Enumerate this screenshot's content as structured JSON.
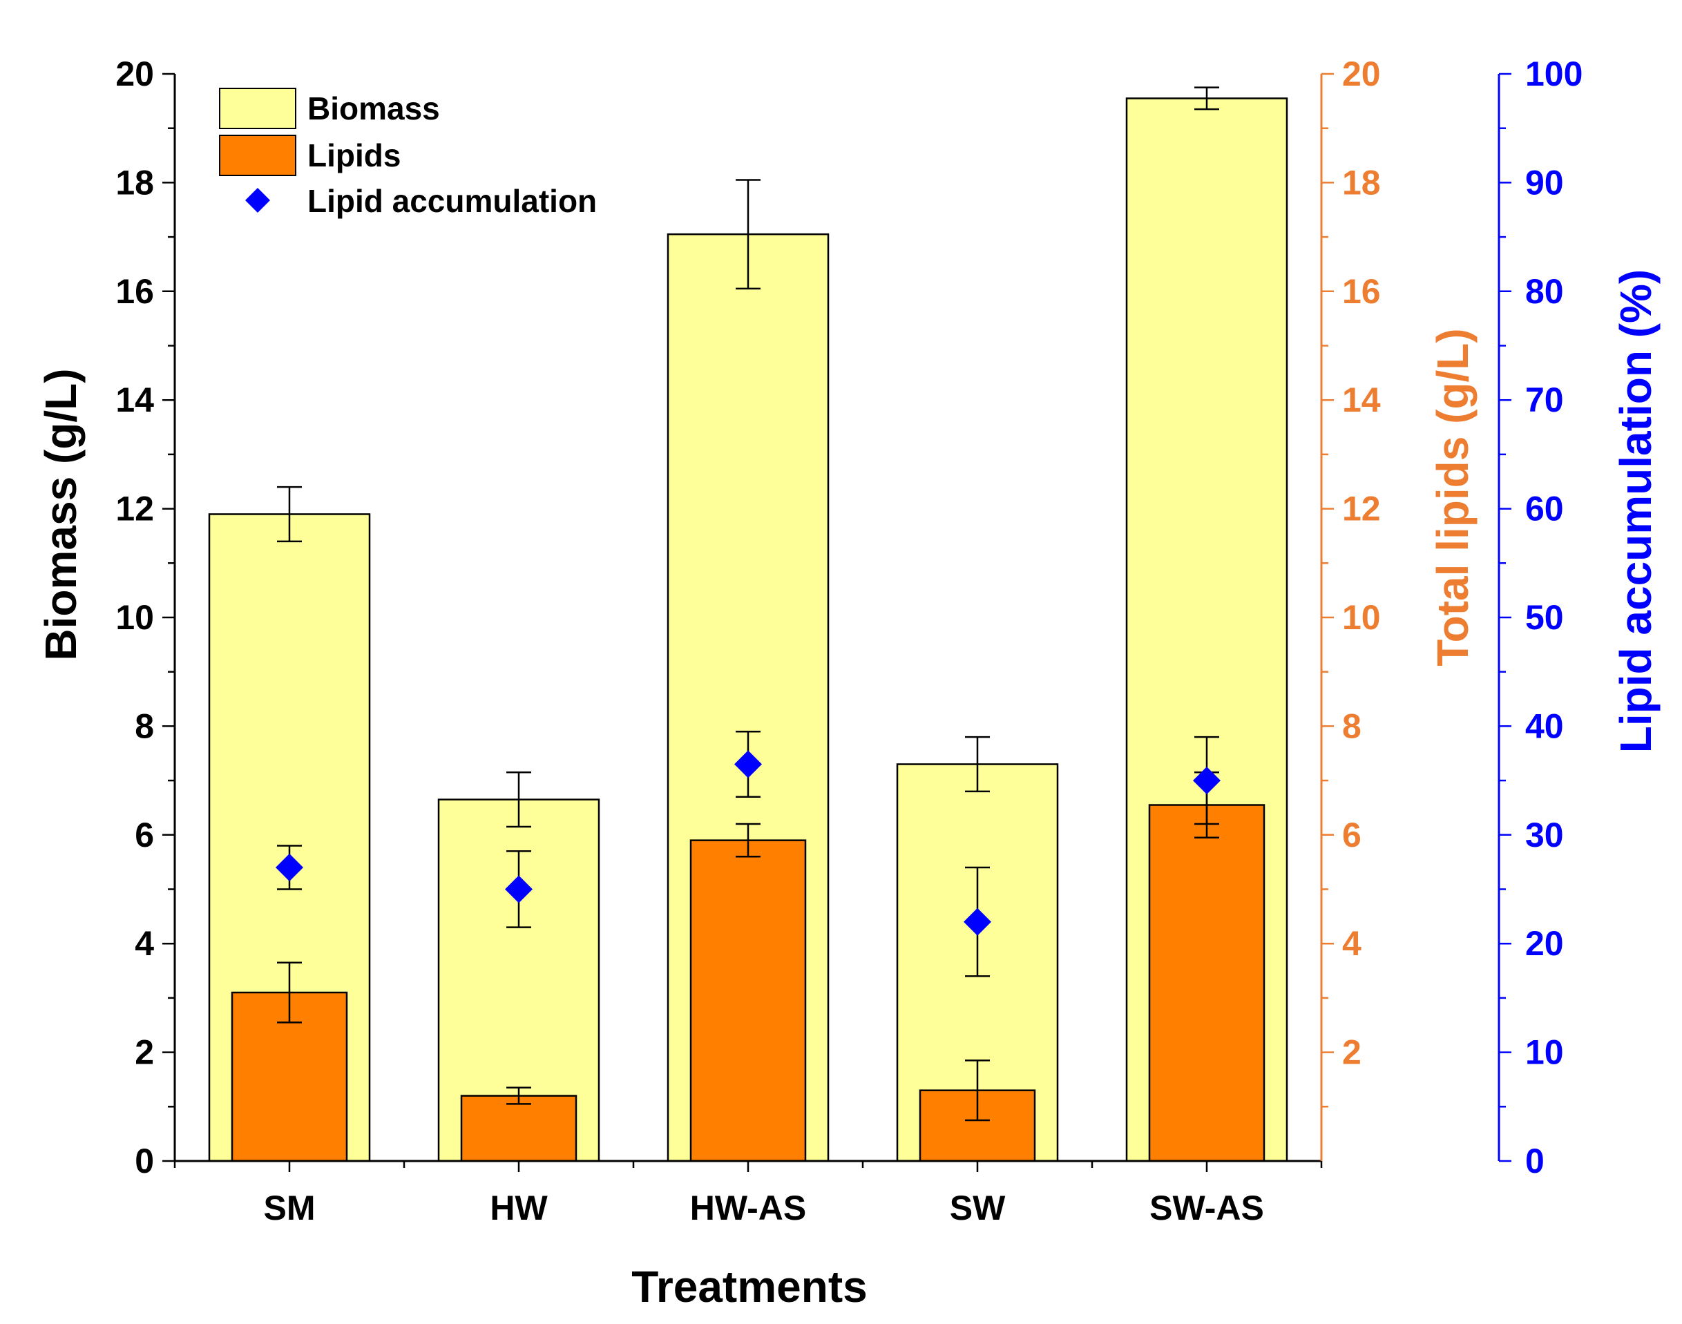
{
  "chart_data": {
    "type": "bar",
    "title": "",
    "xlabel": "Treatments",
    "ylabel": "Biomass (g/L)",
    "y2label": "Total lipids (g/L)",
    "y3label": "Lipid accumulation (%)",
    "categories": [
      "SM",
      "HW",
      "HW-AS",
      "SW",
      "SW-AS"
    ],
    "ylim": [
      0,
      20
    ],
    "y2lim": [
      0,
      20
    ],
    "y3lim": [
      0,
      100
    ],
    "y_ticks": [
      "0",
      "2",
      "4",
      "6",
      "8",
      "10",
      "12",
      "14",
      "16",
      "18",
      "20"
    ],
    "y2_ticks": [
      "2",
      "4",
      "6",
      "8",
      "10",
      "12",
      "14",
      "16",
      "18",
      "20"
    ],
    "y3_ticks": [
      "0",
      "10",
      "20",
      "30",
      "40",
      "50",
      "60",
      "70",
      "80",
      "90",
      "100"
    ],
    "grid": false,
    "legend_position": "top-left",
    "series": [
      {
        "name": "Biomass",
        "kind": "bar",
        "axis": "left",
        "color": "#FFFF99",
        "values": [
          11.9,
          6.65,
          17.05,
          7.3,
          19.55
        ],
        "errors": [
          0.5,
          0.5,
          1.0,
          0.5,
          0.2
        ]
      },
      {
        "name": "Lipids",
        "kind": "bar",
        "axis": "right",
        "color": "#FF8000",
        "values": [
          3.1,
          1.2,
          5.9,
          1.3,
          6.55
        ],
        "errors": [
          0.55,
          0.15,
          0.3,
          0.55,
          0.6
        ]
      },
      {
        "name": "Lipid accumulation",
        "kind": "scatter",
        "axis": "right2",
        "marker": "diamond",
        "color": "#0000FF",
        "values": [
          27,
          25,
          36.5,
          22,
          35
        ],
        "errors": [
          2,
          3.5,
          3,
          5,
          4
        ]
      }
    ],
    "colors": {
      "axis_left": "#000000",
      "axis_right": "#ED7D31",
      "axis_right2": "#0000FF"
    }
  }
}
